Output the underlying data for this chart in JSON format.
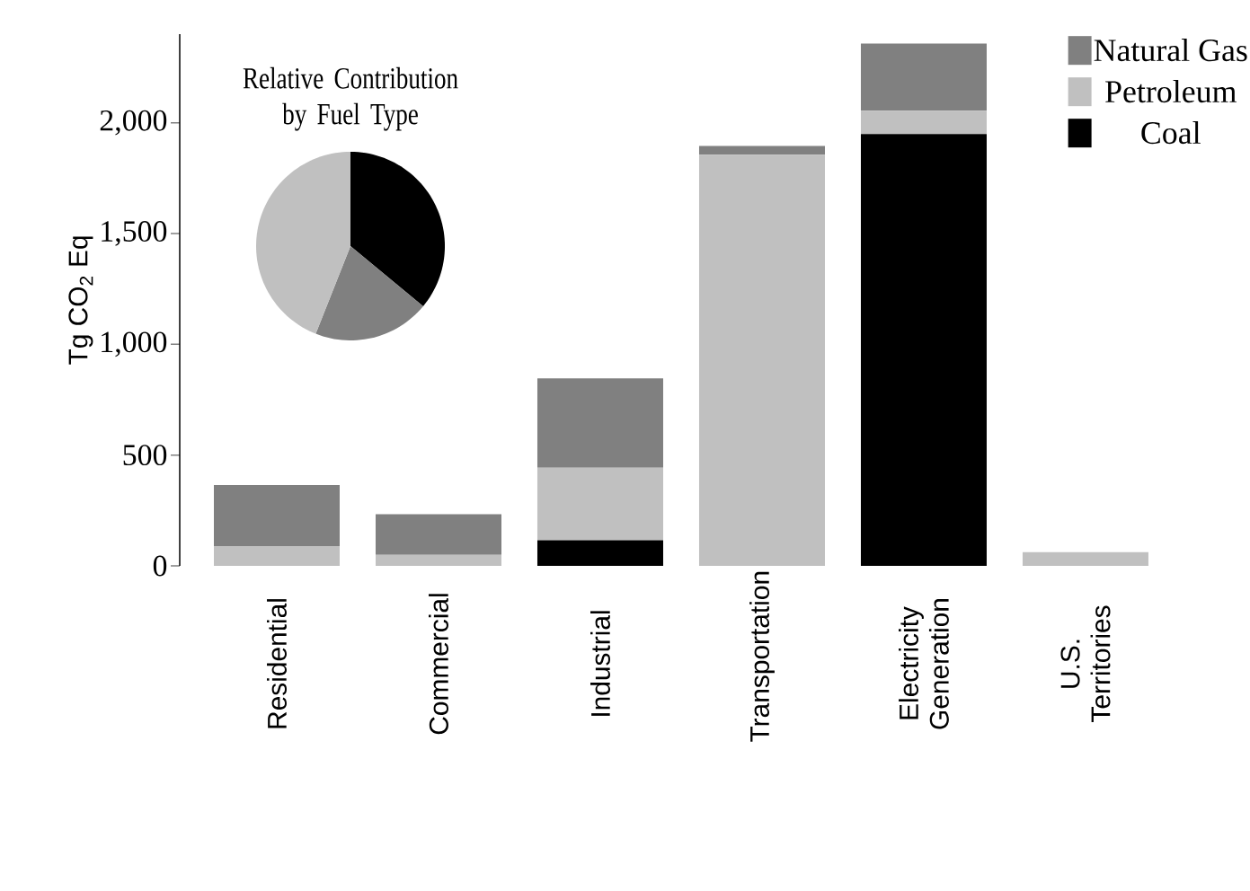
{
  "chart_data": [
    {
      "type": "bar",
      "stacked": true,
      "ylabel": "Tg CO$_{2}$ Eq",
      "categories": [
        "Residential",
        "Commercial",
        "Industrial",
        "Transportation",
        "Electricity Generation",
        "U.S. Territories"
      ],
      "series": [
        {
          "name": "Coal",
          "color": "#000000",
          "values": [
            0,
            0,
            116,
            0,
            1949,
            0
          ]
        },
        {
          "name": "Petroleum",
          "color": "#c0c0c0",
          "values": [
            89,
            50,
            327,
            1856,
            105,
            62
          ]
        },
        {
          "name": "Natural Gas",
          "color": "#808080",
          "values": [
            276,
            183,
            403,
            39,
            303,
            0
          ]
        }
      ],
      "ylim": [
        0,
        2400
      ],
      "yticks": [
        0,
        500,
        {
          "value": 1000,
          "label": "1,000"
        },
        {
          "value": 1500,
          "label": "1,500"
        },
        {
          "value": 2000,
          "label": "2,000"
        }
      ],
      "grid": false,
      "legend": "top right"
    },
    {
      "type": "pie",
      "title": "Relative Contribution by Fuel Type",
      "categories": [
        null,
        null,
        null
      ],
      "values": [
        36,
        20,
        44
      ],
      "colors": [
        "#000000",
        "#808080",
        "#c0c0c0"
      ]
    }
  ]
}
